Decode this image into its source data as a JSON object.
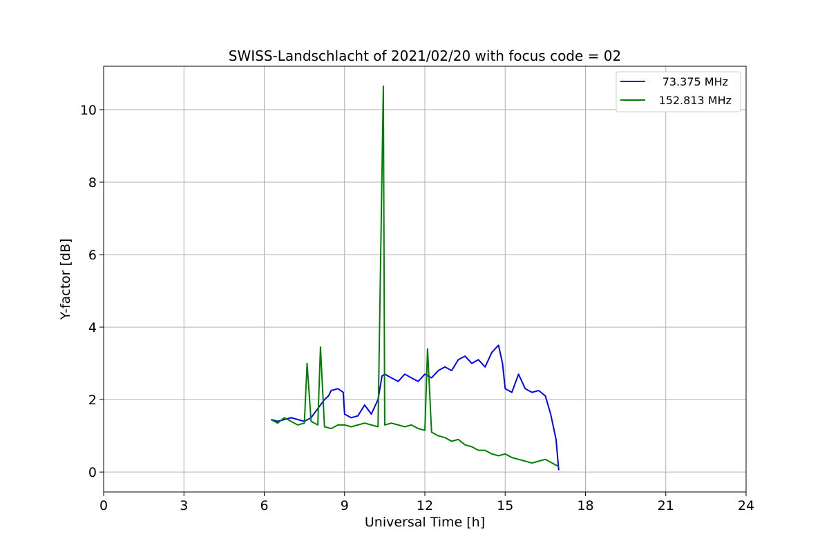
{
  "chart_data": {
    "type": "line",
    "title": "SWISS-Landschlacht of 2021/02/20 with focus code = 02",
    "xlabel": "Universal Time [h]",
    "ylabel": "Y-factor [dB]",
    "xlim": [
      0,
      24
    ],
    "ylim": [
      -0.55,
      11.2
    ],
    "xticks": [
      0,
      3,
      6,
      9,
      12,
      15,
      18,
      21,
      24
    ],
    "yticks": [
      0,
      2,
      4,
      6,
      8,
      10
    ],
    "grid": true,
    "legend_position": "top-right",
    "series": [
      {
        "name": "73.375 MHz",
        "color": "#0000ff",
        "x": [
          6.25,
          6.5,
          6.75,
          7.0,
          7.25,
          7.5,
          7.75,
          8.0,
          8.25,
          8.4,
          8.5,
          8.75,
          8.95,
          9.0,
          9.25,
          9.5,
          9.75,
          10.0,
          10.25,
          10.4,
          10.5,
          10.75,
          11.0,
          11.25,
          11.5,
          11.75,
          12.0,
          12.25,
          12.5,
          12.75,
          13.0,
          13.25,
          13.5,
          13.75,
          14.0,
          14.25,
          14.5,
          14.75,
          14.9,
          15.0,
          15.25,
          15.5,
          15.75,
          16.0,
          16.25,
          16.5,
          16.7,
          16.9,
          17.0
        ],
        "y": [
          1.45,
          1.4,
          1.45,
          1.5,
          1.45,
          1.4,
          1.5,
          1.75,
          2.0,
          2.1,
          2.25,
          2.3,
          2.2,
          1.6,
          1.5,
          1.55,
          1.85,
          1.6,
          2.0,
          2.65,
          2.7,
          2.6,
          2.5,
          2.7,
          2.6,
          2.5,
          2.7,
          2.6,
          2.8,
          2.9,
          2.8,
          3.1,
          3.2,
          3.0,
          3.1,
          2.9,
          3.3,
          3.5,
          3.0,
          2.3,
          2.2,
          2.7,
          2.3,
          2.2,
          2.25,
          2.1,
          1.6,
          0.9,
          0.05
        ]
      },
      {
        "name": "152.813 MHz",
        "color": "#008000",
        "x": [
          6.25,
          6.5,
          6.75,
          7.0,
          7.25,
          7.5,
          7.6,
          7.75,
          8.0,
          8.1,
          8.25,
          8.5,
          8.75,
          9.0,
          9.25,
          9.5,
          9.75,
          10.0,
          10.25,
          10.45,
          10.5,
          10.75,
          11.0,
          11.25,
          11.5,
          11.75,
          12.0,
          12.1,
          12.25,
          12.5,
          12.75,
          13.0,
          13.25,
          13.5,
          13.75,
          14.0,
          14.25,
          14.5,
          14.75,
          15.0,
          15.25,
          15.5,
          15.75,
          16.0,
          16.25,
          16.5,
          16.75,
          17.0
        ],
        "y": [
          1.45,
          1.35,
          1.5,
          1.4,
          1.3,
          1.35,
          3.0,
          1.4,
          1.3,
          3.45,
          1.25,
          1.2,
          1.3,
          1.3,
          1.25,
          1.3,
          1.35,
          1.3,
          1.25,
          10.65,
          1.3,
          1.35,
          1.3,
          1.25,
          1.3,
          1.2,
          1.15,
          3.4,
          1.1,
          1.0,
          0.95,
          0.85,
          0.9,
          0.75,
          0.7,
          0.6,
          0.6,
          0.5,
          0.45,
          0.5,
          0.4,
          0.35,
          0.3,
          0.25,
          0.3,
          0.35,
          0.25,
          0.15
        ]
      }
    ]
  }
}
